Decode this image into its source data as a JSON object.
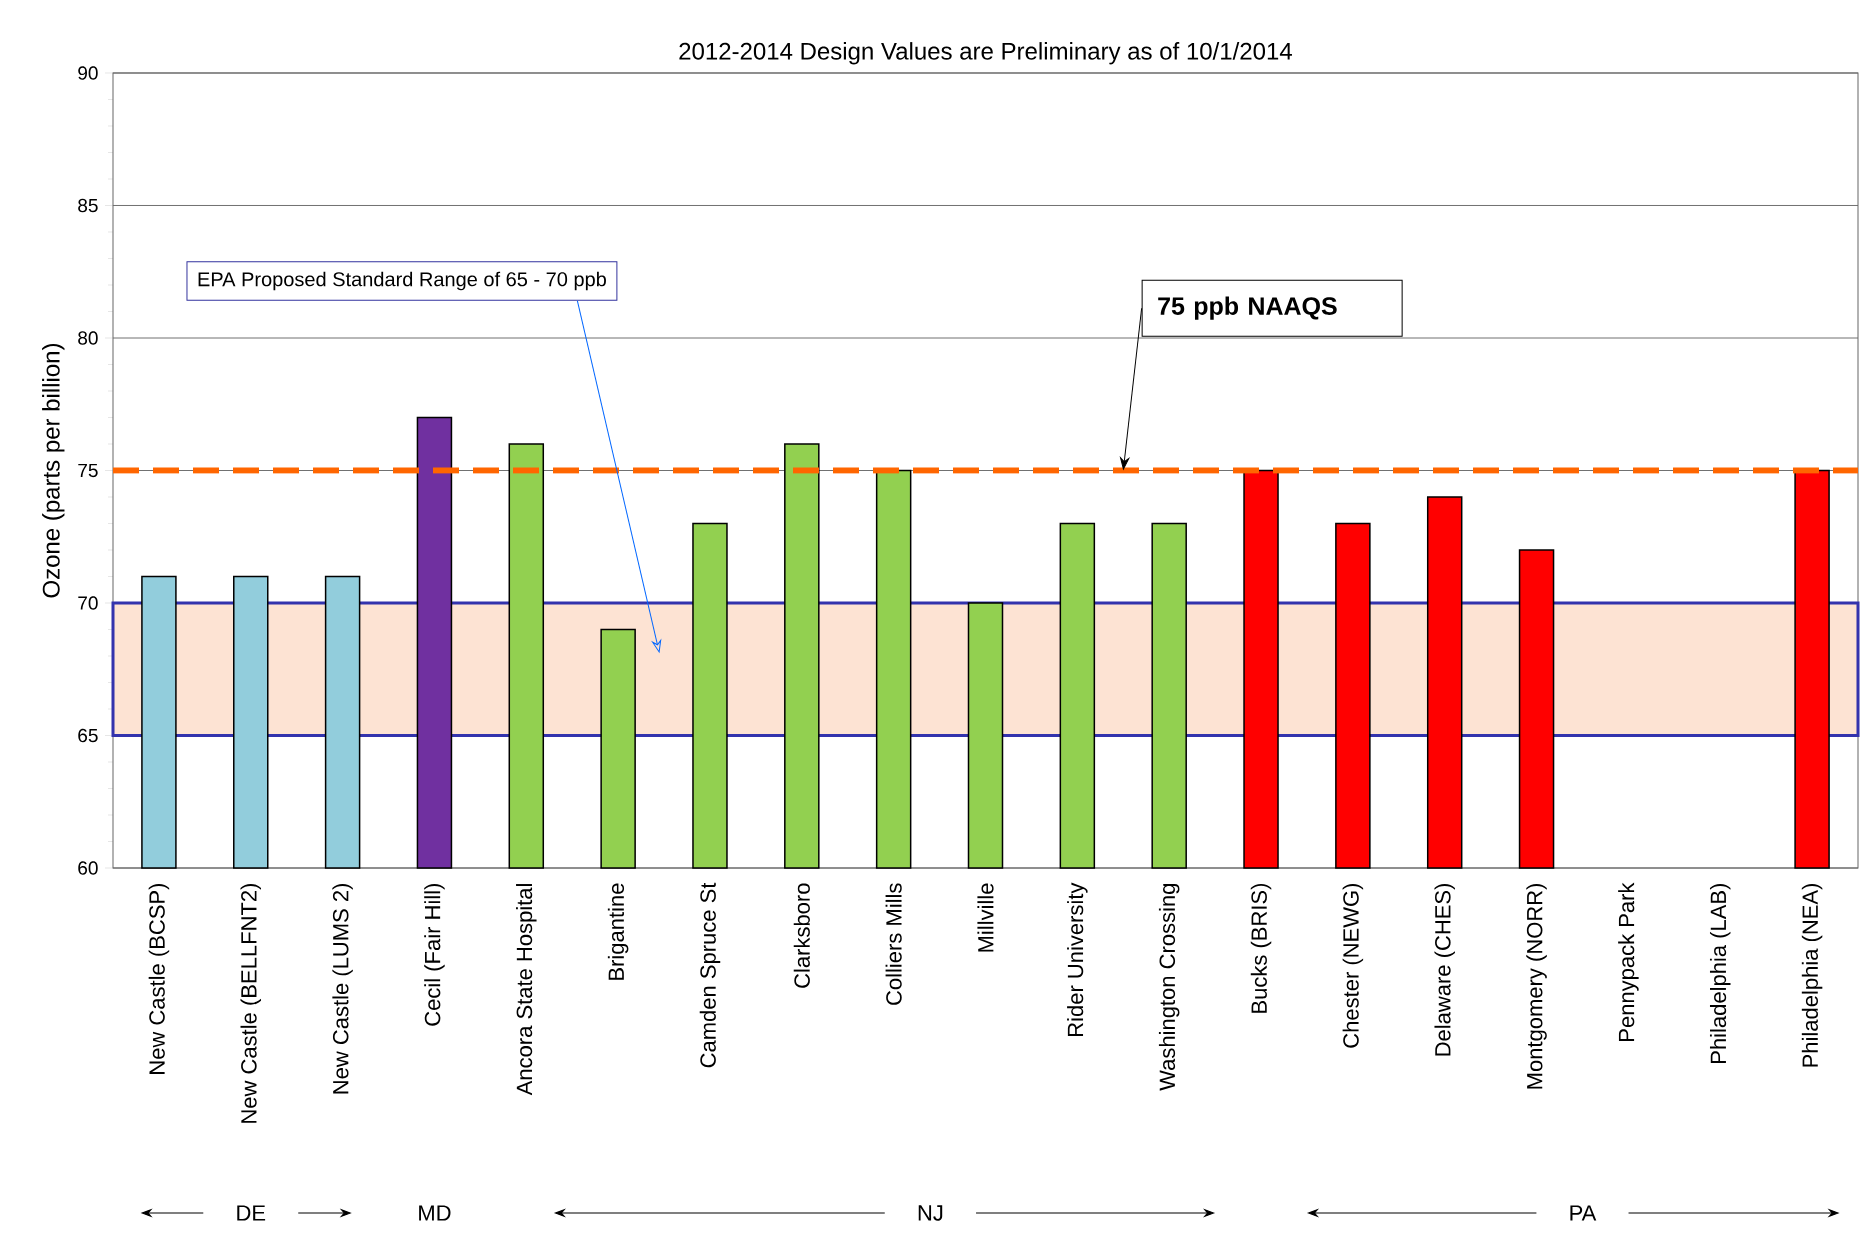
{
  "chart_data": {
    "type": "bar",
    "title": "2012-2014 Design Values are Preliminary as of 10/1/2014",
    "ylabel": "Ozone  (parts per billion)",
    "categories": [
      "New Castle (BCSP)",
      "New Castle (BELLFNT2)",
      "New Castle (LUMS 2)",
      "Cecil (Fair Hill)",
      "Ancora State Hospital",
      "Brigantine",
      "Camden Spruce St",
      "Clarksboro",
      "Colliers Mills",
      "Millville",
      "Rider University",
      "Washington Crossing",
      "Bucks (BRIS)",
      "Chester (NEWG)",
      "Delaware (CHES)",
      "Montgomery (NORR)",
      "Pennypack Park",
      "Philadelphia (LAB)",
      "Philadelphia (NEA)"
    ],
    "values": [
      71,
      71,
      71,
      77,
      76,
      69,
      73,
      76,
      75,
      70,
      73,
      73,
      75,
      73,
      74,
      72,
      null,
      null,
      75
    ],
    "colors": [
      "#92cddc",
      "#92cddc",
      "#92cddc",
      "#7030a0",
      "#92d050",
      "#92d050",
      "#92d050",
      "#92d050",
      "#92d050",
      "#92d050",
      "#92d050",
      "#92d050",
      "#ff0000",
      "#ff0000",
      "#ff0000",
      "#ff0000",
      "#ff0000",
      "#ff0000",
      "#ff0000"
    ],
    "ylim": [
      60,
      90
    ],
    "yticks": [
      60,
      65,
      70,
      75,
      80,
      85,
      90
    ],
    "grid": "y",
    "ref_lines": [
      {
        "axis": "y",
        "value": 75,
        "label": "75 ppb NAAQS",
        "color": "#ff6600",
        "line_style": "dashed"
      }
    ],
    "bands": [
      {
        "axis": "y",
        "from": 65,
        "to": 70,
        "label": "EPA Proposed Standard Range of 65 - 70 ppb",
        "color": "#fde3d3"
      }
    ],
    "annotations": [
      "DE",
      "MD",
      "NJ",
      "PA"
    ]
  }
}
